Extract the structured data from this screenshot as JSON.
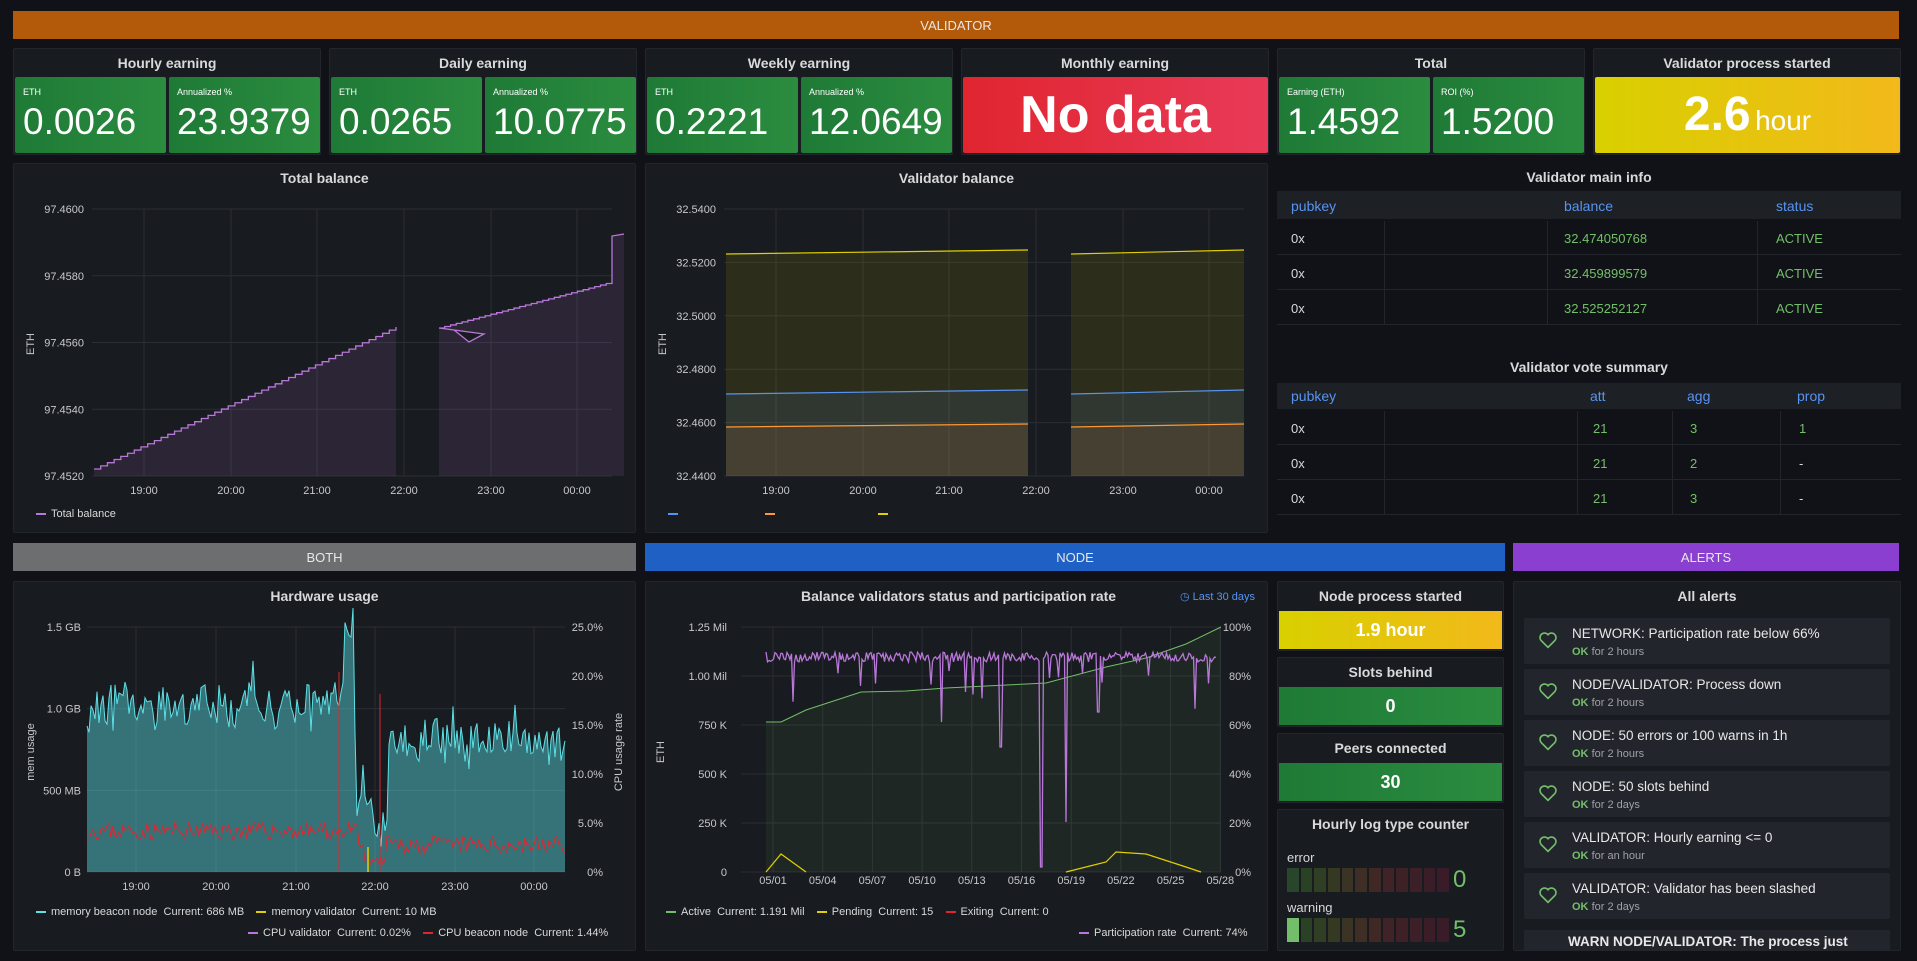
{
  "colors": {
    "validator_row": "#b35a0a",
    "both_row": "#6d6e70",
    "node_row": "#1f60c4",
    "alerts_row": "#8a3fd0",
    "green": "#2b8c3f",
    "red": "#e0252f",
    "yellow": "#e0d000",
    "purple": "#b877d9",
    "cyan": "#5ce0e6",
    "ok_green": "#73bf69"
  },
  "rows": {
    "validator": "VALIDATOR",
    "both": "BOTH",
    "node": "NODE",
    "alerts": "ALERTS"
  },
  "earnings": {
    "hourly": {
      "title": "Hourly earning",
      "eth_label": "ETH",
      "eth": "0.0026",
      "ann_label": "Annualized %",
      "ann": "23.9379"
    },
    "daily": {
      "title": "Daily earning",
      "eth_label": "ETH",
      "eth": "0.0265",
      "ann_label": "Annualized %",
      "ann": "10.0775"
    },
    "weekly": {
      "title": "Weekly earning",
      "eth_label": "ETH",
      "eth": "0.2221",
      "ann_label": "Annualized %",
      "ann": "12.0649"
    },
    "monthly": {
      "title": "Monthly earning",
      "value": "No data"
    },
    "total": {
      "title": "Total",
      "eth_label": "Earning (ETH)",
      "eth": "1.4592",
      "roi_label": "ROI (%)",
      "roi": "1.5200"
    },
    "started": {
      "title": "Validator process started",
      "value": "2.6",
      "unit": "hour"
    }
  },
  "total_balance": {
    "title": "Total balance",
    "ylabel": "ETH",
    "yticks": [
      "97.4600",
      "97.4580",
      "97.4560",
      "97.4540",
      "97.4520"
    ],
    "xticks": [
      "19:00",
      "20:00",
      "21:00",
      "22:00",
      "23:00",
      "00:00"
    ],
    "legend": "Total balance"
  },
  "validator_balance": {
    "title": "Validator balance",
    "ylabel": "ETH",
    "yticks": [
      "32.5400",
      "32.5200",
      "32.5000",
      "32.4800",
      "32.4600",
      "32.4400"
    ],
    "xticks": [
      "19:00",
      "20:00",
      "21:00",
      "22:00",
      "23:00",
      "00:00"
    ]
  },
  "main_info": {
    "title": "Validator main info",
    "headers": [
      "pubkey",
      "balance",
      "status"
    ],
    "rows": [
      {
        "pubkey": "0x",
        "balance": "32.474050768",
        "status": "ACTIVE"
      },
      {
        "pubkey": "0x",
        "balance": "32.459899579",
        "status": "ACTIVE"
      },
      {
        "pubkey": "0x",
        "balance": "32.525252127",
        "status": "ACTIVE"
      }
    ]
  },
  "vote_summary": {
    "title": "Validator vote summary",
    "headers": [
      "pubkey",
      "att",
      "agg",
      "prop"
    ],
    "rows": [
      {
        "pubkey": "0x",
        "att": "21",
        "agg": "3",
        "prop": "1"
      },
      {
        "pubkey": "0x",
        "att": "21",
        "agg": "2",
        "prop": "-"
      },
      {
        "pubkey": "0x",
        "att": "21",
        "agg": "3",
        "prop": "-"
      }
    ]
  },
  "hardware": {
    "title": "Hardware usage",
    "ylabel_left": "mem usage",
    "ylabel_right": "CPU usage rate",
    "yticks_left": [
      "1.5 GB",
      "1.0 GB",
      "500 MB",
      "0 B"
    ],
    "yticks_right": [
      "25.0%",
      "20.0%",
      "15.0%",
      "10.0%",
      "5.0%",
      "0%"
    ],
    "xticks": [
      "19:00",
      "20:00",
      "21:00",
      "22:00",
      "23:00",
      "00:00"
    ],
    "legend": [
      {
        "name": "memory beacon node",
        "current": "Current: 686 MB",
        "color": "#5ce0e6"
      },
      {
        "name": "memory validator",
        "current": "Current: 10 MB",
        "color": "#e0d000"
      },
      {
        "name": "CPU validator",
        "current": "Current: 0.02%",
        "color": "#b877d9"
      },
      {
        "name": "CPU beacon node",
        "current": "Current: 1.44%",
        "color": "#e0252f"
      }
    ]
  },
  "participation": {
    "title": "Balance validators status and participation rate",
    "range": "Last 30 days",
    "ylabel": "ETH",
    "yticks_left": [
      "1.25 Mil",
      "1.00 Mil",
      "750 K",
      "500 K",
      "250 K",
      "0"
    ],
    "yticks_right": [
      "100%",
      "80%",
      "60%",
      "40%",
      "20%",
      "0%"
    ],
    "xticks": [
      "05/01",
      "05/04",
      "05/07",
      "05/10",
      "05/13",
      "05/16",
      "05/19",
      "05/22",
      "05/25",
      "05/28"
    ],
    "legend": [
      {
        "name": "Active",
        "current": "Current: 1.191 Mil",
        "color": "#73bf69"
      },
      {
        "name": "Pending",
        "current": "Current: 15",
        "color": "#e0d000"
      },
      {
        "name": "Exiting",
        "current": "Current: 0",
        "color": "#e0252f"
      },
      {
        "name": "Participation rate",
        "current": "Current: 74%",
        "color": "#b877d9"
      }
    ]
  },
  "node_started": {
    "title": "Node process started",
    "value": "1.9 hour"
  },
  "slots_behind": {
    "title": "Slots behind",
    "value": "0"
  },
  "peers": {
    "title": "Peers connected",
    "value": "30"
  },
  "log_counter": {
    "title": "Hourly log type counter",
    "error_label": "error",
    "error_value": "0",
    "warning_label": "warning",
    "warning_value": "5"
  },
  "alerts": {
    "title": "All alerts",
    "items": [
      {
        "name": "NETWORK: Participation rate below 66%",
        "state": "OK",
        "since": "for 2 hours"
      },
      {
        "name": "NODE/VALIDATOR: Process down",
        "state": "OK",
        "since": "for 2 hours"
      },
      {
        "name": "NODE: 50 errors or 100 warns in 1h",
        "state": "OK",
        "since": "for 2 hours"
      },
      {
        "name": "NODE: 50 slots behind",
        "state": "OK",
        "since": "for 2 days"
      },
      {
        "name": "VALIDATOR: Hourly earning <= 0",
        "state": "OK",
        "since": "for an hour"
      },
      {
        "name": "VALIDATOR: Validator has been slashed",
        "state": "OK",
        "since": "for 2 days"
      }
    ],
    "partial": "WARN NODE/VALIDATOR: The process just"
  }
}
